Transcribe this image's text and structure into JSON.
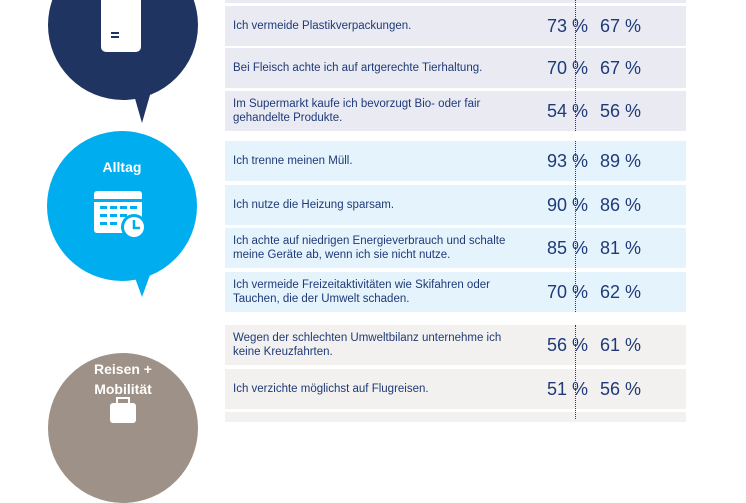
{
  "groups": [
    {
      "title": "",
      "icon": "shopping-bag-icon",
      "color": "#1f3461",
      "rows": [
        {
          "text": "Ich vermeide Plastikverpackungen.",
          "v1": "73 %",
          "v2": "67 %"
        },
        {
          "text": "Bei Fleisch achte ich auf artgerechte Tierhaltung.",
          "v1": "70 %",
          "v2": "67 %"
        },
        {
          "text": "Im Supermarkt kaufe ich bevorzugt Bio- oder fair gehandelte Produkte.",
          "v1": "54 %",
          "v2": "56 %"
        }
      ]
    },
    {
      "title": "Alltag",
      "icon": "calendar-clock-icon",
      "color": "#00aeef",
      "rows": [
        {
          "text": "Ich trenne meinen Müll.",
          "v1": "93 %",
          "v2": "89 %"
        },
        {
          "text": "Ich nutze die Heizung sparsam.",
          "v1": "90 %",
          "v2": "86 %"
        },
        {
          "text": "Ich achte auf niedrigen Energieverbrauch und schalte meine Geräte ab, wenn ich sie nicht nutze.",
          "v1": "85 %",
          "v2": "81 %"
        },
        {
          "text": "Ich vermeide Freizeitaktivitäten wie Skifahren oder Tauchen, die der Umwelt schaden.",
          "v1": "70 %",
          "v2": "62 %"
        }
      ]
    },
    {
      "title": "Reisen + Mobilität",
      "icon": "suitcase-icon",
      "color": "#9e9187",
      "rows": [
        {
          "text": "Wegen der schlechten Umweltbilanz unternehme ich keine Kreuzfahrten.",
          "v1": "56 %",
          "v2": "61 %"
        },
        {
          "text": "Ich verzichte möglichst auf Flugreisen.",
          "v1": "51 %",
          "v2": "56 %"
        }
      ]
    }
  ]
}
